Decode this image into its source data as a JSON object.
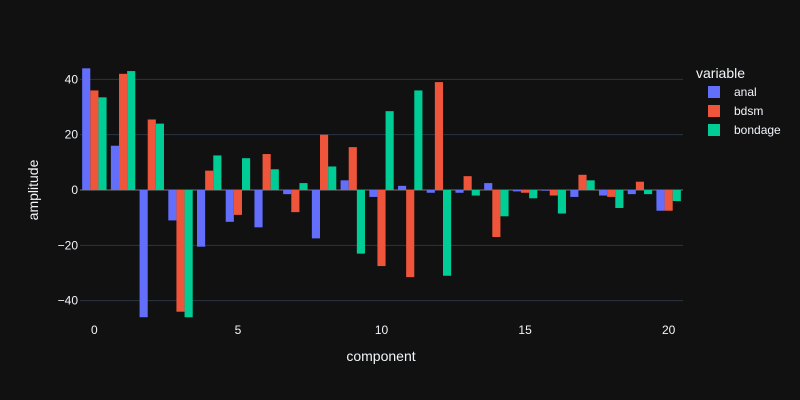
{
  "chart_data": {
    "type": "bar",
    "xlabel": "component",
    "ylabel": "amplitude",
    "legend_title": "variable",
    "legend_position": "right",
    "grid": true,
    "xlim": [
      -0.5,
      20.5
    ],
    "ylim": [
      -47,
      47
    ],
    "x_ticks": [
      0,
      5,
      10,
      15,
      20
    ],
    "y_ticks": [
      -40,
      -20,
      0,
      20,
      40
    ],
    "x": [
      0,
      1,
      2,
      3,
      4,
      5,
      6,
      7,
      8,
      9,
      10,
      11,
      12,
      13,
      14,
      15,
      16,
      17,
      18,
      19,
      20
    ],
    "series": [
      {
        "name": "anal",
        "color": "#636efa",
        "values": [
          44,
          16,
          -46,
          -11,
          -20.5,
          -11.5,
          -13.5,
          -1.5,
          -17.5,
          3.5,
          -2.5,
          1.5,
          -1,
          -1,
          2.5,
          -0.5,
          0,
          -2.5,
          -2,
          -1.5,
          -7.5
        ]
      },
      {
        "name": "bdsm",
        "color": "#ef553b",
        "values": [
          36,
          42,
          25.5,
          -44,
          7,
          -9,
          13,
          -8,
          20,
          15.5,
          -27.5,
          -31.5,
          39,
          5,
          -17,
          -1,
          -2,
          5.5,
          -2.5,
          3,
          -7.5
        ]
      },
      {
        "name": "bondage",
        "color": "#00cc96",
        "values": [
          33.5,
          43,
          24,
          -46,
          12.5,
          11.5,
          7.5,
          2.5,
          8.5,
          -23,
          28.5,
          36,
          -31,
          -2,
          -9.5,
          -3,
          -8.5,
          3.5,
          -6.5,
          -1.5,
          -4
        ]
      },
      {
        "name": "",
        "color": "#636efa",
        "values": [
          null,
          null,
          null,
          null,
          null,
          null,
          null,
          null,
          null,
          null,
          null,
          null,
          null,
          null,
          null,
          null,
          null,
          null,
          null,
          null,
          -6
        ]
      }
    ]
  }
}
